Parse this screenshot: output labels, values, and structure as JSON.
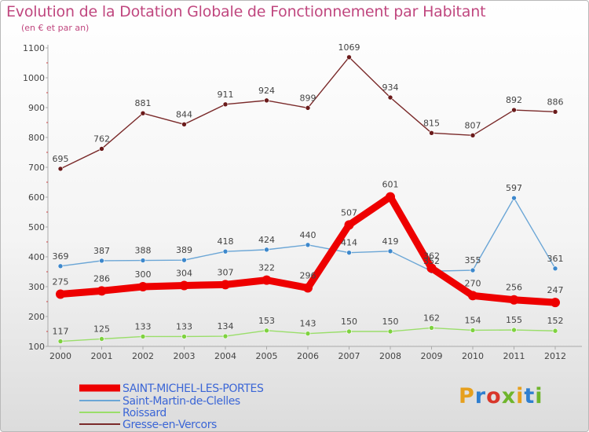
{
  "header": {
    "title": "Evolution de la Dotation Globale de Fonctionnement par Habitant",
    "subtitle": "(en € et par an)"
  },
  "logo": {
    "text": "Proxiti",
    "colors": [
      "#e6a01e",
      "#2f7fd0",
      "#d8362a",
      "#6fb52c",
      "#e6a01e",
      "#2f7fd0",
      "#6fb52c"
    ]
  },
  "chart_data": {
    "type": "line",
    "x": [
      "2000",
      "2001",
      "2002",
      "2003",
      "2004",
      "2005",
      "2006",
      "2007",
      "2008",
      "2009",
      "2010",
      "2011",
      "2012"
    ],
    "ylim": [
      100,
      1100
    ],
    "yticks": [
      "100",
      "200",
      "300",
      "400",
      "500",
      "600",
      "700",
      "800",
      "900",
      "1000",
      "1100"
    ],
    "grid": false,
    "legend_position": "bottom-left",
    "series": [
      {
        "name": "SAINT-MICHEL-LES-PORTES",
        "color": "#ee0000",
        "marker": "#ee0000",
        "bold": true,
        "values": [
          275,
          286,
          300,
          304,
          307,
          322,
          296,
          507,
          601,
          362,
          270,
          256,
          247
        ],
        "labels": [
          "275",
          "286",
          "300",
          "304",
          "307",
          "322",
          "296",
          "507",
          "601",
          "362",
          "270",
          "256",
          "247"
        ]
      },
      {
        "name": "Saint-Martin-de-Clelles",
        "color": "#6ba6d6",
        "marker": "#3d88cc",
        "bold": false,
        "values": [
          369,
          387,
          388,
          389,
          418,
          424,
          440,
          414,
          419,
          352,
          355,
          597,
          361
        ],
        "labels": [
          "369",
          "387",
          "388",
          "389",
          "418",
          "424",
          "440",
          "414",
          "419",
          "352",
          "355",
          "597",
          "361"
        ]
      },
      {
        "name": "Roissard",
        "color": "#9ade6a",
        "marker": "#7ed23f",
        "bold": false,
        "values": [
          117,
          125,
          133,
          133,
          134,
          153,
          143,
          150,
          150,
          162,
          154,
          155,
          152
        ],
        "labels": [
          "117",
          "125",
          "133",
          "133",
          "134",
          "153",
          "143",
          "150",
          "150",
          "162",
          "154",
          "155",
          "152"
        ]
      },
      {
        "name": "Gresse-en-Vercors",
        "color": "#7a2a2a",
        "marker": "#6a1a1a",
        "bold": false,
        "values": [
          695,
          762,
          881,
          844,
          911,
          924,
          899,
          1069,
          934,
          815,
          807,
          892,
          886
        ],
        "labels": [
          "695",
          "762",
          "881",
          "844",
          "911",
          "924",
          "899",
          "1069",
          "934",
          "815",
          "807",
          "892",
          "886"
        ]
      }
    ]
  }
}
